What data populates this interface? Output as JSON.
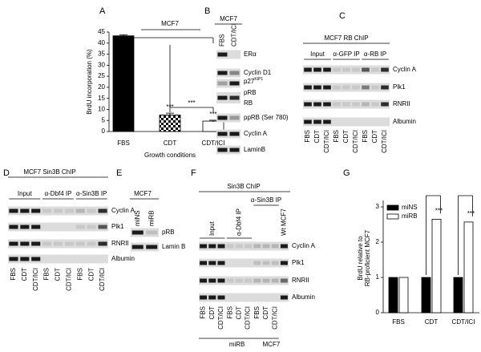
{
  "chart_data": [
    {
      "panel": "A",
      "type": "bar",
      "title": "MCF7",
      "y_label": "BrdU incorporation (%)",
      "x_label": "Growth conditions",
      "categories": [
        "FBS",
        "CDT",
        "CDT/ICI"
      ],
      "values": [
        43.3,
        7.5,
        4.7
      ],
      "errors": [
        0.5,
        0.8,
        0.4
      ],
      "fills": [
        "#000000",
        "checker",
        "#ffffff"
      ],
      "ylim": [
        0,
        45
      ],
      "yticks": [
        0,
        5,
        10,
        15,
        20,
        25,
        30,
        35,
        40,
        45
      ],
      "annotations": [
        "***",
        "***",
        "***"
      ]
    },
    {
      "panel": "G",
      "type": "grouped_bar",
      "y_label": [
        "BrdU relative to",
        "RB-proficient MCF7"
      ],
      "categories": [
        "FBS",
        "CDT",
        "CDT/ICI"
      ],
      "series": [
        {
          "name": "miNS",
          "color": "#000000",
          "values": [
            1,
            1,
            1
          ]
        },
        {
          "name": "miRB",
          "color": "#ffffff",
          "values": [
            1,
            2.65,
            2.57
          ]
        }
      ],
      "ylim": [
        0,
        3
      ],
      "yticks": [
        0,
        1,
        2,
        3
      ],
      "legend": "upper left",
      "annotations": [
        "***",
        "***"
      ]
    }
  ],
  "blots": [
    {
      "label": "B",
      "title": "MCF7",
      "lanes": [
        "FBS",
        "CDT/ICI"
      ],
      "rows": [
        {
          "text": "ERα"
        },
        {
          "text": "Cyclin D1"
        },
        {
          "text": "p27",
          "sup": "KIP1"
        },
        {
          "text": "pRB"
        },
        {
          "text": "RB"
        },
        {
          "text": "ppRB (Ser 780)"
        },
        {
          "text": "Cyclin A"
        },
        {
          "text": "LaminB"
        }
      ]
    },
    {
      "label": "C",
      "title": "MCF7 RB ChIP",
      "groups": [
        "Input",
        "α-GFP IP",
        "α-RB IP"
      ],
      "lanes": [
        "FBS",
        "CDT",
        "CDT/ICI",
        "FBS",
        "CDT",
        "CDT/ICI",
        "FBS",
        "CDT",
        "CDT/ICI"
      ],
      "rows": [
        {
          "text": "Cyclin A"
        },
        {
          "text": "Plk1"
        },
        {
          "text": "RNRII"
        },
        {
          "text": "Albumin"
        }
      ]
    },
    {
      "label": "D",
      "title": "MCF7 Sin3B ChIP",
      "groups": [
        "Input",
        "α-Dbf4 IP",
        "α-Sin3B IP"
      ],
      "lanes": [
        "FBS",
        "CDT",
        "CDT/ICI",
        "FBS",
        "CDT",
        "CDT/ICI",
        "FBS",
        "CDT",
        "CDT/ICI"
      ],
      "rows": [
        {
          "text": "Cyclin A"
        },
        {
          "text": "Plk1"
        },
        {
          "text": "RNRII"
        },
        {
          "text": "Albumin"
        }
      ]
    },
    {
      "label": "E",
      "title": "MCF7",
      "lanes": [
        "miNS",
        "miRB"
      ],
      "rows": [
        {
          "text": "pRB"
        },
        {
          "text": "Lamin B"
        }
      ]
    },
    {
      "label": "F",
      "title": "Sin3B ChIP",
      "groups": [
        "Input",
        "α-Dbf4 IP",
        "α-Sin3B IP",
        "Wt MCF7"
      ],
      "lanes": [
        "FBS",
        "CDT",
        "CDT/ICI",
        "FBS",
        "CDT",
        "CDT/ICI",
        "FBS",
        "CDT",
        "CDT/ICI"
      ],
      "rows": [
        {
          "text": "Cyclin A"
        },
        {
          "text": "Plk1"
        },
        {
          "text": "RNRII"
        },
        {
          "text": "Albumin"
        }
      ],
      "cell_lines": [
        "miRB",
        "MCF7"
      ]
    }
  ]
}
